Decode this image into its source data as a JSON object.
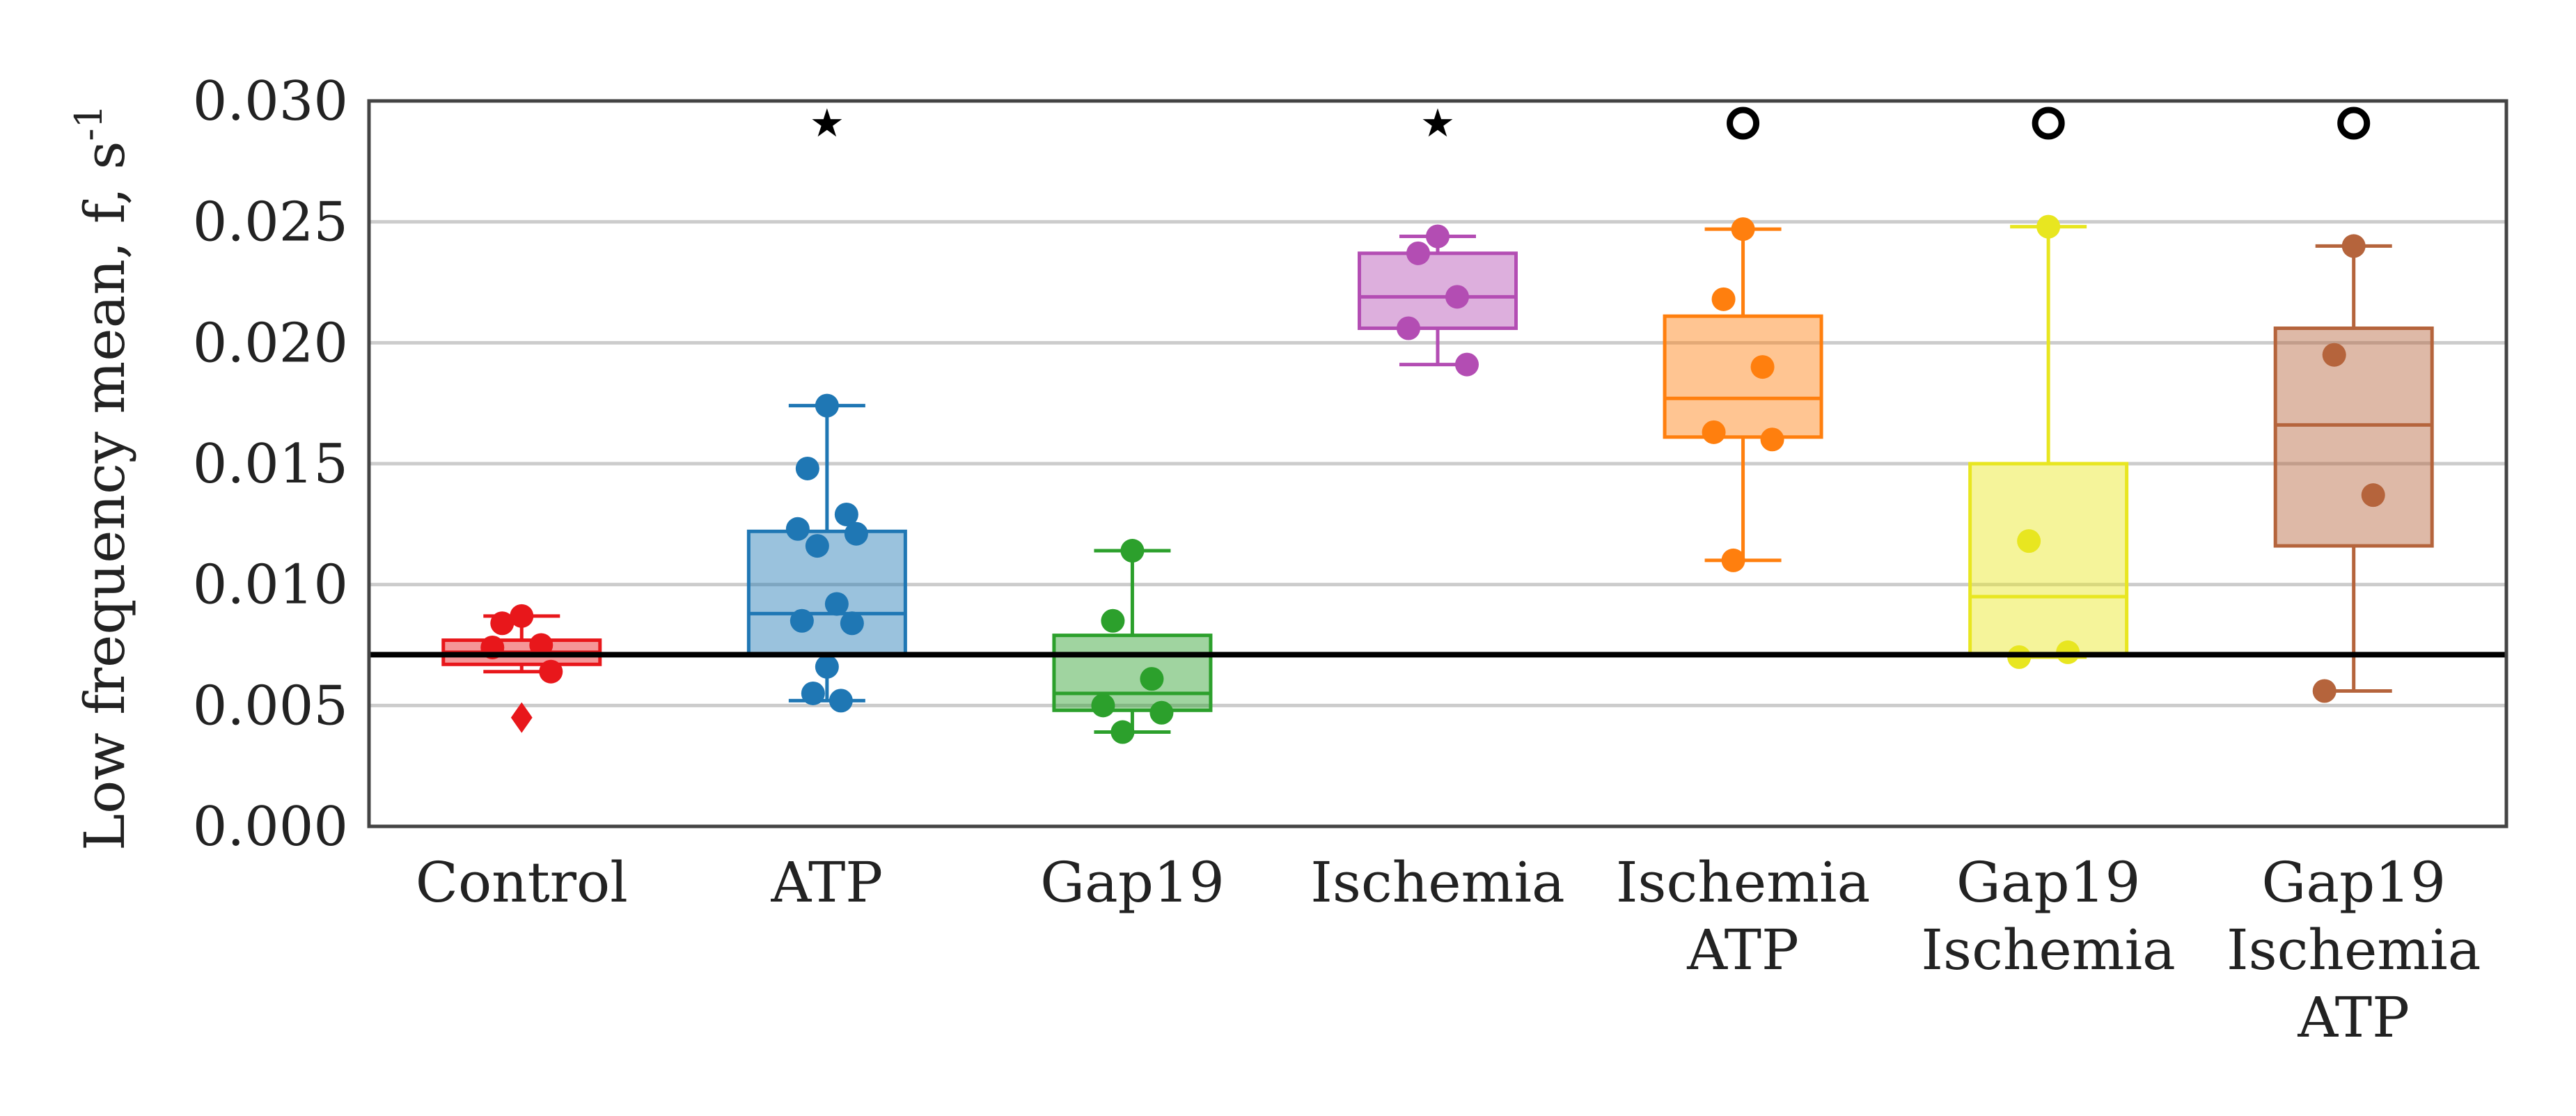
{
  "chart_data": {
    "type": "box",
    "ylabel": "Low frequency mean, f, s",
    "ylabel_superscript": "-1",
    "ylim": [
      0,
      0.03
    ],
    "yticks": [
      "0.000",
      "0.005",
      "0.010",
      "0.015",
      "0.020",
      "0.025",
      "0.030"
    ],
    "ytick_values": [
      0,
      0.005,
      0.01,
      0.015,
      0.02,
      0.025,
      0.03
    ],
    "grid": "horizontal",
    "reference_line": 0.0071,
    "groups": [
      {
        "name": "Control",
        "label_lines": [
          "Control"
        ],
        "color": "#e8171b",
        "box": {
          "q1": 0.0067,
          "median": 0.0072,
          "q3": 0.0077,
          "whisker_low": 0.0064,
          "whisker_high": 0.0087
        },
        "points": [
          0.0087,
          0.0084,
          0.0075,
          0.0074,
          0.0064
        ],
        "outliers": [
          0.0045
        ],
        "marker": ""
      },
      {
        "name": "ATP",
        "label_lines": [
          "ATP"
        ],
        "color": "#1f77b4",
        "box": {
          "q1": 0.0071,
          "median": 0.0088,
          "q3": 0.0122,
          "whisker_low": 0.0052,
          "whisker_high": 0.0174
        },
        "points": [
          0.0174,
          0.0148,
          0.0129,
          0.0123,
          0.0121,
          0.0116,
          0.0092,
          0.0085,
          0.0084,
          0.0066,
          0.0055,
          0.0052
        ],
        "outliers": [],
        "marker": "★"
      },
      {
        "name": "Gap19",
        "label_lines": [
          "Gap19"
        ],
        "color": "#2ca02c",
        "box": {
          "q1": 0.0048,
          "median": 0.0055,
          "q3": 0.0079,
          "whisker_low": 0.0039,
          "whisker_high": 0.0114
        },
        "points": [
          0.0114,
          0.0085,
          0.0061,
          0.005,
          0.0047,
          0.0039
        ],
        "outliers": [],
        "marker": ""
      },
      {
        "name": "Ischemia",
        "label_lines": [
          "Ischemia"
        ],
        "color": "#b34db3",
        "box": {
          "q1": 0.0206,
          "median": 0.0219,
          "q3": 0.0237,
          "whisker_low": 0.0191,
          "whisker_high": 0.0244
        },
        "points": [
          0.0244,
          0.0237,
          0.0219,
          0.0206,
          0.0191
        ],
        "outliers": [],
        "marker": "★"
      },
      {
        "name": "Ischemia ATP",
        "label_lines": [
          "Ischemia",
          "ATP"
        ],
        "color": "#ff7f0e",
        "box": {
          "q1": 0.0161,
          "median": 0.0177,
          "q3": 0.0211,
          "whisker_low": 0.011,
          "whisker_high": 0.0247
        },
        "points": [
          0.0247,
          0.0218,
          0.019,
          0.0163,
          0.016,
          0.011
        ],
        "outliers": [],
        "marker": "○"
      },
      {
        "name": "Gap19 Ischemia",
        "label_lines": [
          "Gap19",
          "Ischemia"
        ],
        "color": "#e8e620",
        "box": {
          "q1": 0.0071,
          "median": 0.0095,
          "q3": 0.015,
          "whisker_low": 0.007,
          "whisker_high": 0.0248
        },
        "points": [
          0.0248,
          0.0118,
          0.0072,
          0.007
        ],
        "outliers": [],
        "marker": "○"
      },
      {
        "name": "Gap19 Ischemia ATP",
        "label_lines": [
          "Gap19",
          "Ischemia",
          "ATP"
        ],
        "color": "#b5643c",
        "box": {
          "q1": 0.0116,
          "median": 0.0166,
          "q3": 0.0206,
          "whisker_low": 0.0056,
          "whisker_high": 0.024
        },
        "points": [
          0.024,
          0.0195,
          0.0137,
          0.0056
        ],
        "outliers": [],
        "marker": "○"
      }
    ]
  }
}
